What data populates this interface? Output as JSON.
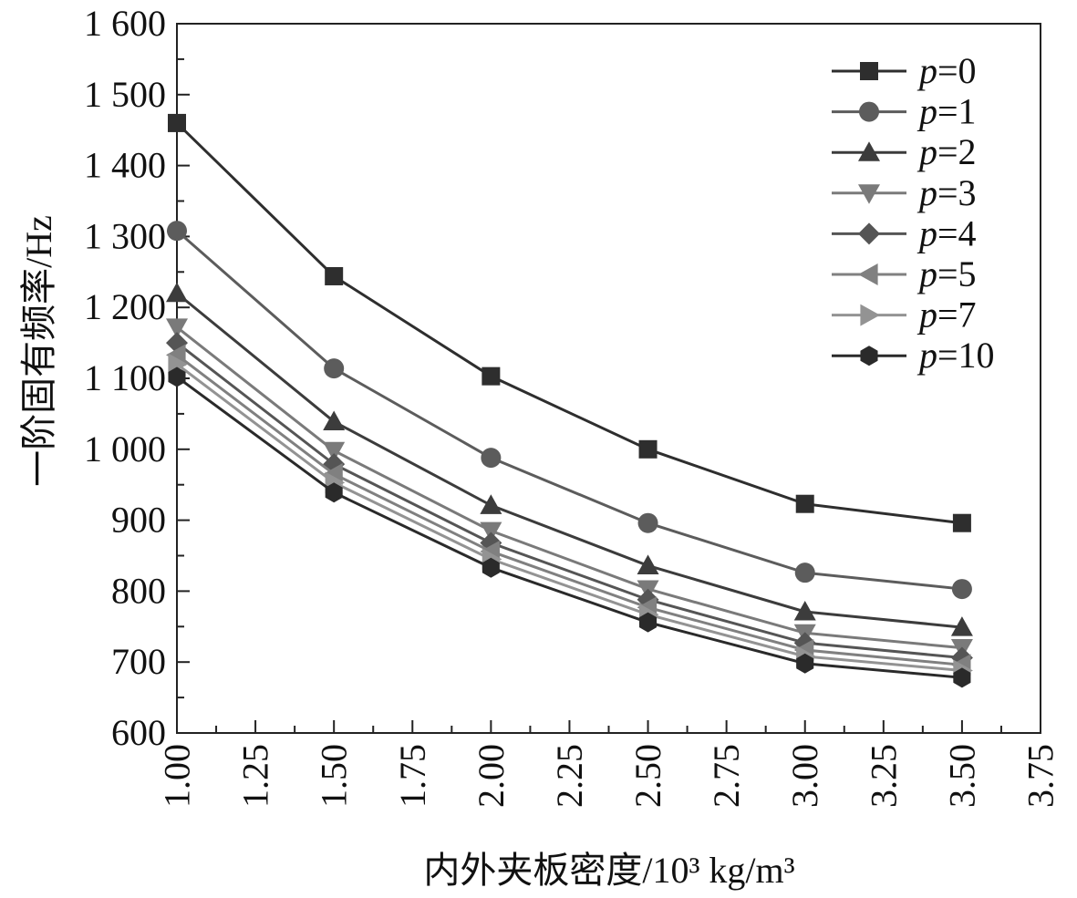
{
  "chart_data": {
    "type": "line",
    "title": "",
    "xlabel": "内外夹板密度/10³ kg/m³",
    "ylabel": "一阶固有频率/Hz",
    "xlim": [
      1.0,
      3.75
    ],
    "ylim": [
      600,
      1600
    ],
    "x_ticks": [
      1.0,
      1.25,
      1.5,
      1.75,
      2.0,
      2.25,
      2.5,
      2.75,
      3.0,
      3.25,
      3.5,
      3.75
    ],
    "x_tick_labels": [
      "1.00",
      "1.25",
      "1.50",
      "1.75",
      "2.00",
      "2.25",
      "2.50",
      "2.75",
      "3.00",
      "3.25",
      "3.50",
      "3.75"
    ],
    "y_ticks": [
      600,
      700,
      800,
      900,
      1000,
      1100,
      1200,
      1300,
      1400,
      1500,
      1600
    ],
    "y_tick_labels": [
      "600",
      "700",
      "800",
      "900",
      "1 000",
      "1 100",
      "1 200",
      "1 300",
      "1 400",
      "1 500",
      "1 600"
    ],
    "grid": false,
    "legend_position": "top-right",
    "x": [
      1.0,
      1.5,
      2.0,
      2.5,
      3.0,
      3.5
    ],
    "series": [
      {
        "name": "p=0",
        "prefix": "p",
        "suffix": "=0",
        "marker": "square",
        "color": "#2e2e2e",
        "values": [
          1460,
          1244,
          1103,
          1000,
          923,
          896
        ]
      },
      {
        "name": "p=1",
        "prefix": "p",
        "suffix": "=1",
        "marker": "circle",
        "color": "#5c5c5c",
        "values": [
          1308,
          1114,
          988,
          896,
          826,
          803
        ]
      },
      {
        "name": "p=2",
        "prefix": "p",
        "suffix": "=2",
        "marker": "triangle-up",
        "color": "#3c3c3c",
        "values": [
          1220,
          1039,
          921,
          836,
          771,
          749
        ]
      },
      {
        "name": "p=3",
        "prefix": "p",
        "suffix": "=3",
        "marker": "triangle-down",
        "color": "#7a7a7a",
        "values": [
          1172,
          998,
          885,
          803,
          741,
          720
        ]
      },
      {
        "name": "p=4",
        "prefix": "p",
        "suffix": "=4",
        "marker": "diamond",
        "color": "#555555",
        "values": [
          1150,
          979,
          868,
          788,
          727,
          706
        ]
      },
      {
        "name": "p=5",
        "prefix": "p",
        "suffix": "=5",
        "marker": "triangle-left",
        "color": "#808080",
        "values": [
          1133,
          965,
          856,
          777,
          717,
          696
        ]
      },
      {
        "name": "p=7",
        "prefix": "p",
        "suffix": "=7",
        "marker": "triangle-right",
        "color": "#939393",
        "values": [
          1120,
          953,
          845,
          767,
          708,
          688
        ]
      },
      {
        "name": "p=10",
        "prefix": "p",
        "suffix": "=10",
        "marker": "hexagon",
        "color": "#2a2a2a",
        "values": [
          1102,
          939,
          833,
          756,
          698,
          678
        ]
      }
    ]
  }
}
